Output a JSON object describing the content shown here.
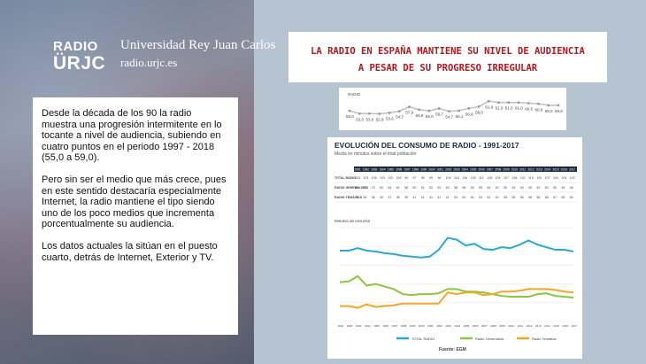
{
  "brand": {
    "logo_top": "RADIO",
    "logo_bottom": "ÜRJC",
    "university": "Universidad Rey Juan Carlos",
    "url": "radio.urjc.es"
  },
  "text": {
    "p1": "Desde la década de los 90 la radio muestra una  progresión intermitente en lo tocante a nivel de audiencia, subiendo en cuatro puntos en el periodo 1997 - 2018 (55,0 a 59,0).",
    "p2": "Pero sin ser el medio que más crece, pues en este sentido destacaría especialmente Internet, la radio mantiene el tipo siendo uno de los poco medios que incrementa porcentualmente su audiencia.",
    "p3": "Los datos actuales la sitúan en el puesto cuarto, detrás de Internet, Exterior y TV."
  },
  "headline": {
    "line1": "LA RADIO EN ESPAÑA MANTIENE SU NIVEL DE AUDIENCIA",
    "line2": "A PESAR DE SU PROGRESO IRREGULAR"
  },
  "strip": {
    "label": "RADIO",
    "values": [
      "55,0",
      "53,0",
      "53,0",
      "52,9",
      "53,6",
      "54,7",
      "57,9",
      "55,8",
      "55,0",
      "56,7",
      "54,7",
      "55,1",
      "56,8",
      "58,0",
      "61,9",
      "61,0",
      "61,0",
      "61,0",
      "60,5",
      "60,0",
      "59,0",
      "59,0"
    ]
  },
  "chart": {
    "title": "EVOLUCIÓN DEL CONSUMO DE RADIO - 1991-2017",
    "subtitle": "Media en minutos sobre el total población",
    "table_rows": [
      "TOTAL RADIO",
      "RADIO GENERALISTA",
      "RADIO TEMÁTICA"
    ],
    "axis_label": "Minutos de escucha",
    "source": "Fuente: EGM",
    "colors": {
      "total": "#2aa8d8",
      "generalista": "#8cc63f",
      "tematica": "#f5a623"
    }
  },
  "chart_data": {
    "type": "line",
    "categories": [
      "1991",
      "1992",
      "1993",
      "1994",
      "1995",
      "1996",
      "1997",
      "1998",
      "1999",
      "2000",
      "2001",
      "2002",
      "2003",
      "2004",
      "2005",
      "2006",
      "2007",
      "2008",
      "2009",
      "2010",
      "2011",
      "2012",
      "2013",
      "2014",
      "2015",
      "2016",
      "2017"
    ],
    "series": [
      {
        "name": "TOTAL RADIO",
        "values": [
          103,
          103,
          106,
          103,
          102,
          100,
          99,
          97,
          96,
          95,
          96,
          104,
          118,
          116,
          109,
          111,
          105,
          104,
          107,
          106,
          110,
          115,
          110,
          107,
          104,
          104,
          102
        ]
      },
      {
        "name": "Radio Generalista",
        "values": [
          66,
          67,
          73,
          62,
          64,
          61,
          58,
          52,
          51,
          52,
          52,
          53,
          58,
          58,
          55,
          55,
          54,
          52,
          50,
          49,
          49,
          49,
          52,
          53,
          50,
          49,
          48
        ]
      },
      {
        "name": "Radio Temática",
        "values": [
          38,
          38,
          36,
          40,
          37,
          38,
          39,
          41,
          41,
          41,
          41,
          41,
          54,
          52,
          54,
          54,
          51,
          52,
          55,
          55,
          56,
          58,
          58,
          58,
          57,
          55,
          54
        ]
      }
    ],
    "ylim": [
      20,
      130
    ]
  }
}
